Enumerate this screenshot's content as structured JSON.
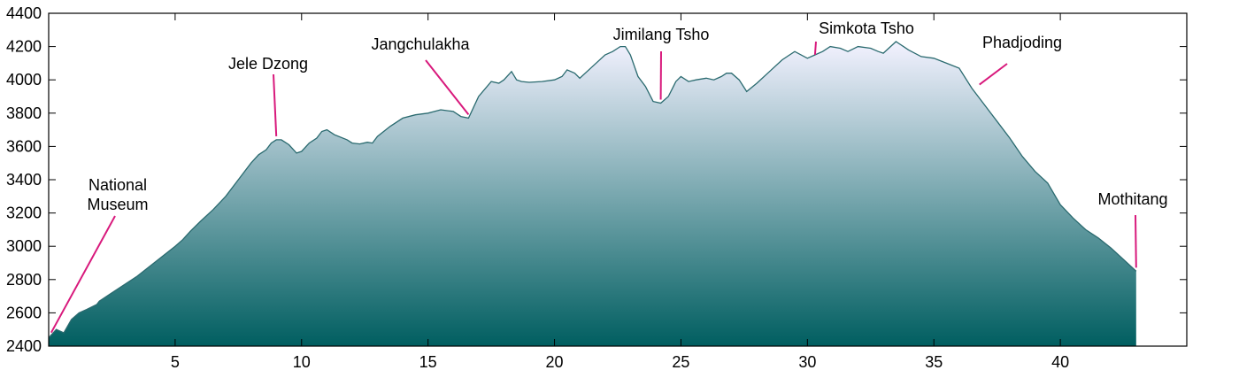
{
  "chart_data": {
    "type": "area",
    "title": "",
    "xlabel": "",
    "ylabel": "",
    "xlim": [
      0,
      45
    ],
    "ylim": [
      2400,
      4400
    ],
    "x_ticks": [
      5,
      10,
      15,
      20,
      25,
      30,
      35,
      40
    ],
    "y_ticks": [
      2400,
      2600,
      2800,
      3000,
      3200,
      3400,
      3600,
      3800,
      4000,
      4200,
      4400
    ],
    "grid": false,
    "fill_gradient": {
      "top": "#f3f2ff",
      "bottom": "#005e60"
    },
    "line_color": "#2a6a6f",
    "annotation_color": "#d8197c",
    "series": [
      {
        "x": [
          0,
          0.3,
          0.6,
          0.9,
          1.2,
          1.5,
          1.9,
          2.0,
          2.5,
          3.0,
          3.5,
          4.0,
          4.5,
          5.0,
          5.3,
          5.6,
          6.0,
          6.5,
          7.0,
          7.5,
          8.0,
          8.3,
          8.6,
          8.8,
          9.0,
          9.2,
          9.5,
          9.8,
          10.0,
          10.3,
          10.6,
          10.8,
          11.0,
          11.3,
          11.8,
          12.0,
          12.3,
          12.6,
          12.8,
          13.0,
          13.5,
          14.0,
          14.5,
          15.0,
          15.5,
          16.0,
          16.3,
          16.6,
          17.0,
          17.5,
          17.8,
          18.0,
          18.3,
          18.5,
          18.7,
          19.0,
          19.5,
          20.0,
          20.3,
          20.5,
          20.8,
          21.0,
          21.5,
          22.0,
          22.3,
          22.6,
          22.8,
          23.0,
          23.3,
          23.6,
          23.9,
          24.2,
          24.5,
          24.8,
          25.0,
          25.3,
          25.6,
          26.0,
          26.3,
          26.6,
          26.8,
          27.0,
          27.3,
          27.6,
          28.0,
          28.5,
          29.0,
          29.5,
          30.0,
          30.3,
          30.6,
          30.9,
          31.3,
          31.6,
          32.0,
          32.5,
          32.8,
          33.0,
          33.5,
          33.8,
          34.0,
          34.5,
          35.0,
          35.5,
          36.0,
          36.5,
          37.0,
          37.5,
          38.0,
          38.5,
          39.0,
          39.5,
          40.0,
          40.5,
          41.0,
          41.5,
          42.0,
          42.5,
          43.0
        ],
        "y": [
          2450,
          2500,
          2480,
          2560,
          2600,
          2620,
          2650,
          2670,
          2720,
          2770,
          2820,
          2880,
          2940,
          3000,
          3040,
          3090,
          3150,
          3220,
          3300,
          3400,
          3500,
          3550,
          3580,
          3620,
          3640,
          3640,
          3610,
          3560,
          3570,
          3620,
          3650,
          3690,
          3700,
          3670,
          3640,
          3620,
          3615,
          3625,
          3620,
          3660,
          3720,
          3770,
          3790,
          3800,
          3820,
          3810,
          3780,
          3770,
          3900,
          3990,
          3980,
          4000,
          4050,
          4000,
          3990,
          3985,
          3990,
          4000,
          4020,
          4060,
          4040,
          4010,
          4080,
          4150,
          4170,
          4200,
          4200,
          4150,
          4020,
          3960,
          3870,
          3860,
          3900,
          3990,
          4020,
          3990,
          4000,
          4010,
          4000,
          4020,
          4040,
          4040,
          4000,
          3930,
          3980,
          4050,
          4120,
          4170,
          4130,
          4150,
          4170,
          4200,
          4190,
          4170,
          4200,
          4190,
          4170,
          4160,
          4230,
          4200,
          4180,
          4140,
          4130,
          4100,
          4070,
          3950,
          3850,
          3750,
          3650,
          3540,
          3450,
          3380,
          3250,
          3170,
          3100,
          3050,
          2990,
          2920,
          2850
        ]
      }
    ],
    "annotations": [
      {
        "label": "National Museum",
        "lines": [
          "National",
          "Museum"
        ],
        "x": 0.1,
        "y": 2460
      },
      {
        "label": "Jele Dzong",
        "lines": [
          "Jele Dzong"
        ],
        "x": 9.0,
        "y": 3640
      },
      {
        "label": "Jangchulakha",
        "lines": [
          "Jangchulakha"
        ],
        "x": 16.6,
        "y": 3770
      },
      {
        "label": "Jimilang Tsho",
        "lines": [
          "Jimilang Tsho"
        ],
        "x": 24.2,
        "y": 3860
      },
      {
        "label": "Simkota Tsho",
        "lines": [
          "Simkota Tsho"
        ],
        "x": 30.3,
        "y": 4130
      },
      {
        "label": "Phadjoding",
        "lines": [
          "Phadjoding"
        ],
        "x": 36.8,
        "y": 3950
      },
      {
        "label": "Mothitang",
        "lines": [
          "Mothitang"
        ],
        "x": 43.0,
        "y": 2850
      }
    ]
  }
}
